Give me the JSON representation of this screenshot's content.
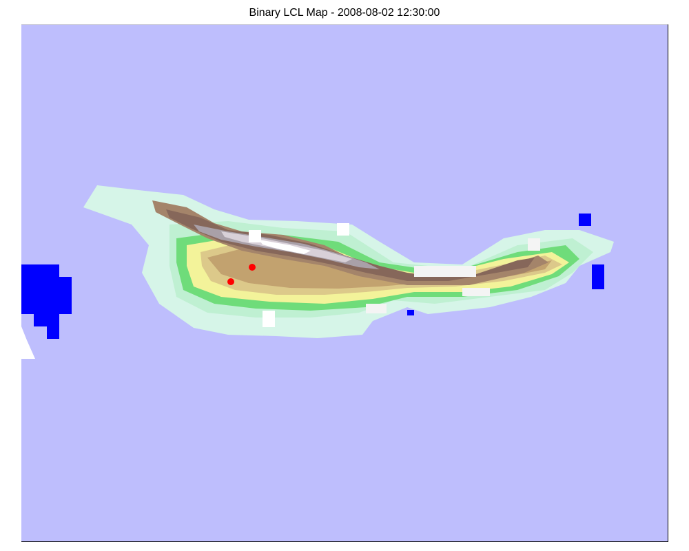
{
  "title": "Binary LCL Map - 2008-08-02 12:30:00",
  "colors": {
    "sea": "#bebefd",
    "lcl_above": "#0000ff",
    "lcl_masked": "#ffffff",
    "station": "#ff0000",
    "terrain_low": "#d6f5e8",
    "terrain_green": "#6fdc7a",
    "terrain_yellow": "#f3f39a",
    "terrain_tan": "#c2a26f",
    "terrain_brown": "#86675a",
    "terrain_high": "#ece4ea"
  },
  "stations": [
    {
      "id": "station-1"
    },
    {
      "id": "station-2"
    }
  ]
}
